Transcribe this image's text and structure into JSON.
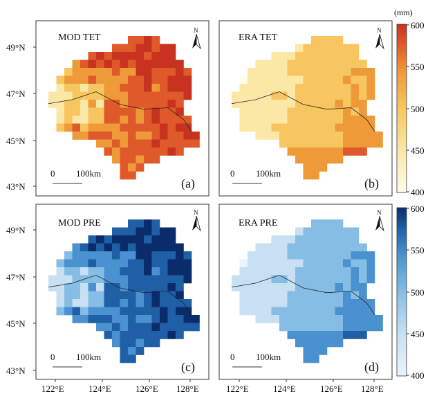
{
  "figure": {
    "unit_label": "(mm)",
    "panels": [
      {
        "id": "a",
        "title": "MOD TET",
        "letter": "(a)",
        "palette": "orange",
        "pattern": "mod"
      },
      {
        "id": "b",
        "title": "ERA TET",
        "letter": "(b)",
        "palette": "orange",
        "pattern": "era"
      },
      {
        "id": "c",
        "title": "MOD PRE",
        "letter": "(c)",
        "palette": "blue",
        "pattern": "mod"
      },
      {
        "id": "d",
        "title": "ERA PRE",
        "letter": "(d)",
        "palette": "blue",
        "pattern": "era"
      }
    ],
    "scale_bar": {
      "start": "0",
      "end": "100km"
    },
    "north_label": "N",
    "lat_ticks": [
      "49°N",
      "47°N",
      "45°N",
      "43°N"
    ],
    "lon_ticks": [
      "122°E",
      "124°E",
      "126°E",
      "128°E"
    ],
    "colorbar_top": {
      "palette": "orange",
      "ticks": [
        "600",
        "550",
        "500",
        "450",
        "400"
      ]
    },
    "colorbar_bottom": {
      "palette": "blue",
      "ticks": [
        "600",
        "550",
        "500",
        "450",
        "400"
      ]
    },
    "colors": {
      "orange": [
        "#fefcea",
        "#fbe7a6",
        "#f7c660",
        "#ef9a39",
        "#e0592a",
        "#c8331f"
      ],
      "blue": [
        "#eaf4fc",
        "#c7e0f3",
        "#86bde4",
        "#4a92cf",
        "#1f5fa6",
        "#0b2c6b"
      ]
    }
  }
}
